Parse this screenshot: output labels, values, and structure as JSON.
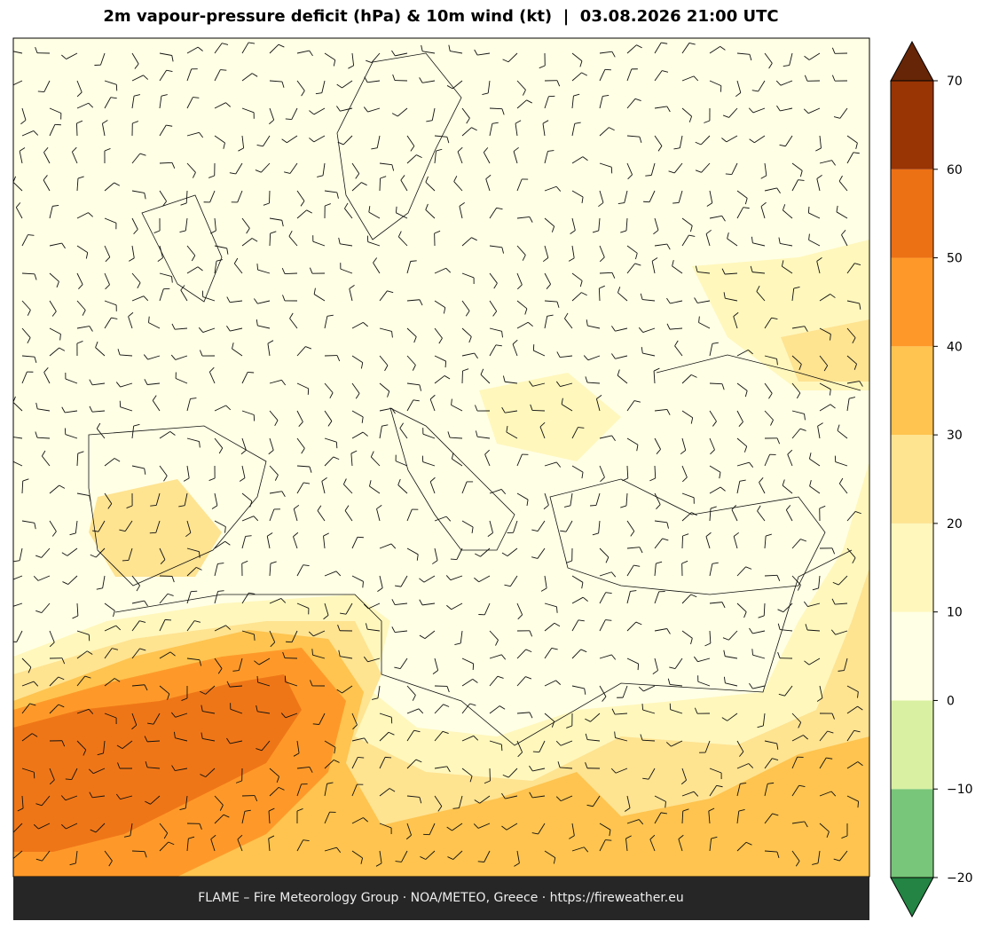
{
  "title": "2m vapour-pressure deficit (hPa) & 10m wind (kt)  |  03.08.2026 21:00 UTC",
  "footer": "FLAME – Fire Meteorology Group · NOA/METEO, Greece · https://fireweather.eu",
  "colorbar": {
    "lim": [
      -20,
      70
    ],
    "ticks": [
      {
        "value": -20,
        "label": "−20"
      },
      {
        "value": -10,
        "label": "−10"
      },
      0,
      10,
      20,
      30,
      40,
      50,
      60,
      70
    ],
    "colors": [
      "#78c679",
      "#d9f0a3",
      "#ffffe5",
      "#fff7bc",
      "#fee391",
      "#fec44f",
      "#fe9929",
      "#ec7014",
      "#993404"
    ],
    "under_color": "#238443",
    "over_color": "#662506"
  }
}
